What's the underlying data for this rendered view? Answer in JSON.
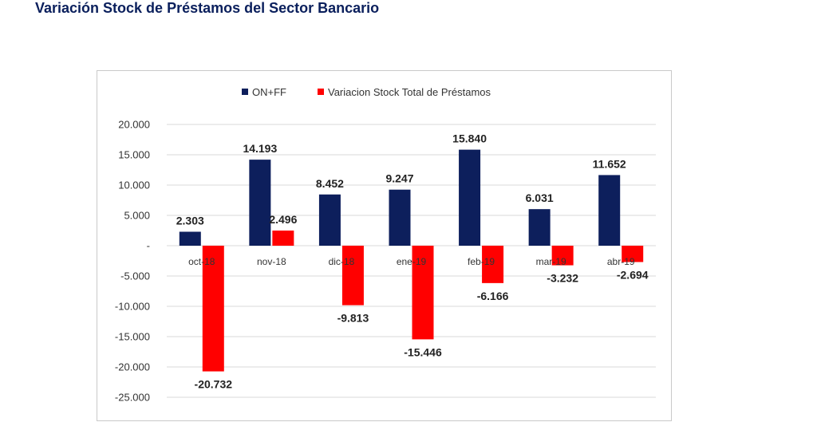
{
  "page": {
    "title": "Variación Stock de Préstamos del Sector Bancario"
  },
  "chart_data": {
    "type": "bar",
    "title": "",
    "xlabel": "",
    "ylabel": "",
    "categories": [
      "oct-18",
      "nov-18",
      "dic-18",
      "ene-19",
      "feb-19",
      "mar-19",
      "abr-19"
    ],
    "series": [
      {
        "name": "ON+FF",
        "color": "#0d1f5c",
        "values": [
          2303,
          14193,
          8452,
          9247,
          15840,
          6031,
          11652
        ],
        "labels": [
          "2.303",
          "14.193",
          "8.452",
          "9.247",
          "15.840",
          "6.031",
          "11.652"
        ]
      },
      {
        "name": "Variacion Stock Total de Préstamos",
        "color": "#ff0000",
        "values": [
          -20732,
          2496,
          -9813,
          -15446,
          -6166,
          -3232,
          -2694
        ],
        "labels": [
          "-20.732",
          "2.496",
          "-9.813",
          "-15.446",
          "-6.166",
          "-3.232",
          "-2.694"
        ]
      }
    ],
    "ylim": [
      -25000,
      20000
    ],
    "y_ticks": [
      20000,
      15000,
      10000,
      5000,
      0,
      -5000,
      -10000,
      -15000,
      -20000,
      -25000
    ],
    "y_tick_labels": [
      "20.000",
      "15.000",
      "10.000",
      "5.000",
      "-",
      "-5.000",
      "-10.000",
      "-15.000",
      "-20.000",
      "-25.000"
    ],
    "grid": true,
    "legend_position": "top-center"
  }
}
